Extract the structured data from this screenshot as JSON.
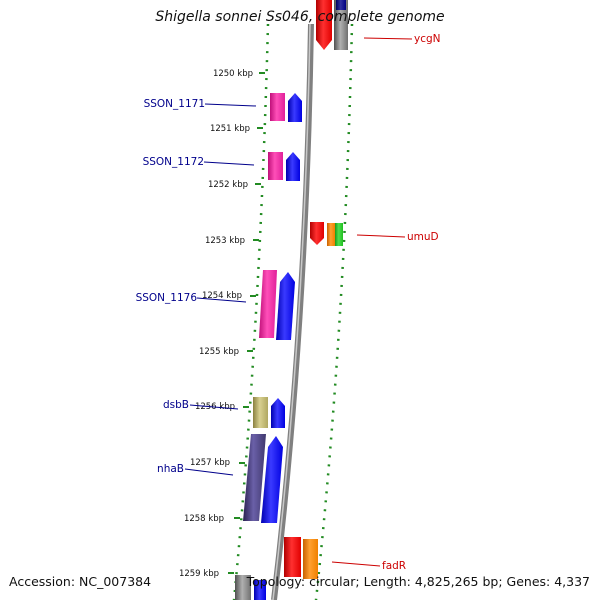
{
  "header": {
    "title": "Shigella sonnei Ss046, complete genome"
  },
  "footer": {
    "accession": "Accession: NC_007384",
    "topology": "Topology: circular; Length: 4,825,265 bp; Genes: 4,337"
  },
  "ruler_ticks": [
    "1250 kbp",
    "1251 kbp",
    "1252 kbp",
    "1253 kbp",
    "1254 kbp",
    "1255 kbp",
    "1256 kbp",
    "1257 kbp",
    "1258 kbp",
    "1259 kbp"
  ],
  "left_gene_labels": [
    "SSON_1171",
    "SSON_1172",
    "SSON_1176",
    "dsbB",
    "nhaB"
  ],
  "right_gene_labels": [
    "ycgN",
    "umuD",
    "fadR"
  ],
  "colors": {
    "left_label": "#00008b",
    "right_label": "#cc0000",
    "tick": "#228b22",
    "backbone": "#808080"
  }
}
